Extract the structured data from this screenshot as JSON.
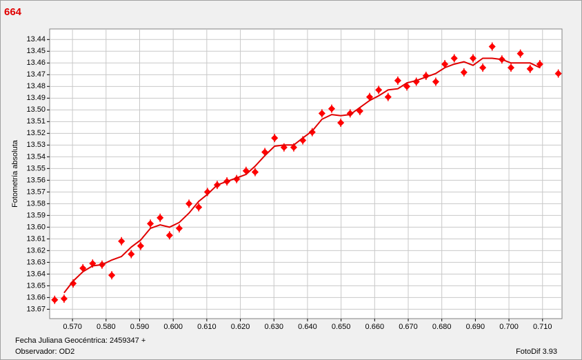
{
  "chart_data": {
    "type": "scatter",
    "title": "664",
    "y_label": "Fotometría absoluta",
    "x_label": "Fecha Juliana Geocéntrica: 2459347 +",
    "observer": "Observador: OD2",
    "software": "FotoDif 3.93",
    "grid": true,
    "xlim": [
      0.5632,
      0.7158
    ],
    "ylim": [
      13.678,
      13.431
    ],
    "xticks": [
      {
        "value": 0.57,
        "label": "0.570"
      },
      {
        "value": 0.58,
        "label": "0.580"
      },
      {
        "value": 0.59,
        "label": "0.590"
      },
      {
        "value": 0.6,
        "label": "0.600"
      },
      {
        "value": 0.61,
        "label": "0.610"
      },
      {
        "value": 0.62,
        "label": "0.620"
      },
      {
        "value": 0.63,
        "label": "0.630"
      },
      {
        "value": 0.64,
        "label": "0.640"
      },
      {
        "value": 0.65,
        "label": "0.650"
      },
      {
        "value": 0.66,
        "label": "0.660"
      },
      {
        "value": 0.67,
        "label": "0.670"
      },
      {
        "value": 0.68,
        "label": "0.680"
      },
      {
        "value": 0.69,
        "label": "0.690"
      },
      {
        "value": 0.7,
        "label": "0.700"
      },
      {
        "value": 0.71,
        "label": "0.710"
      }
    ],
    "yticks": [
      13.44,
      13.45,
      13.46,
      13.47,
      13.48,
      13.49,
      {
        "value": 13.5,
        "label": "13.50"
      },
      13.51,
      13.52,
      13.53,
      13.54,
      13.55,
      13.56,
      13.57,
      13.58,
      13.59,
      {
        "value": 13.6,
        "label": "13.60"
      },
      13.61,
      13.62,
      13.63,
      13.64,
      13.65,
      13.66,
      13.67
    ],
    "x": [
      0.5647,
      0.5675,
      0.5702,
      0.5731,
      0.576,
      0.5788,
      0.5817,
      0.5846,
      0.5875,
      0.5903,
      0.5932,
      0.5961,
      0.5989,
      0.6018,
      0.6047,
      0.6076,
      0.6102,
      0.6131,
      0.616,
      0.6189,
      0.6217,
      0.6244,
      0.6273,
      0.6302,
      0.633,
      0.6359,
      0.6386,
      0.6414,
      0.6443,
      0.6472,
      0.6499,
      0.6527,
      0.6556,
      0.6585,
      0.6612,
      0.664,
      0.6669,
      0.6696,
      0.6724,
      0.6753,
      0.6782,
      0.6809,
      0.6837,
      0.6866,
      0.6893,
      0.6922,
      0.695,
      0.6979,
      0.7006,
      0.7034,
      0.7063,
      0.7092,
      0.7147
    ],
    "series": [
      {
        "type": "scatter",
        "color": "#ff0000",
        "values": [
          13.662,
          13.661,
          13.648,
          13.635,
          13.631,
          13.632,
          13.641,
          13.612,
          13.623,
          13.616,
          13.597,
          13.592,
          13.607,
          13.601,
          13.58,
          13.583,
          13.57,
          13.564,
          13.561,
          13.559,
          13.552,
          13.553,
          13.536,
          13.524,
          13.532,
          13.532,
          13.526,
          13.519,
          13.503,
          13.499,
          13.511,
          13.503,
          13.501,
          13.489,
          13.483,
          13.489,
          13.475,
          13.48,
          13.476,
          13.471,
          13.476,
          13.461,
          13.456,
          13.468,
          13.456,
          13.464,
          13.446,
          13.457,
          13.464,
          13.452,
          13.465,
          13.461,
          13.469
        ]
      },
      {
        "type": "line",
        "color": "#e00000",
        "values": [
          null,
          13.656,
          13.646,
          13.638,
          13.633,
          13.632,
          13.628,
          13.625,
          13.617,
          13.611,
          13.601,
          13.598,
          13.6,
          13.596,
          13.588,
          13.578,
          13.572,
          13.564,
          13.561,
          13.558,
          13.555,
          13.548,
          13.539,
          13.531,
          13.53,
          13.53,
          13.524,
          13.518,
          13.508,
          13.504,
          13.505,
          13.504,
          13.498,
          13.492,
          13.488,
          13.483,
          13.482,
          13.477,
          13.475,
          13.472,
          13.469,
          13.464,
          13.461,
          13.459,
          13.462,
          13.456,
          13.456,
          13.457,
          13.46,
          13.46,
          13.46,
          13.464,
          null
        ]
      }
    ]
  }
}
